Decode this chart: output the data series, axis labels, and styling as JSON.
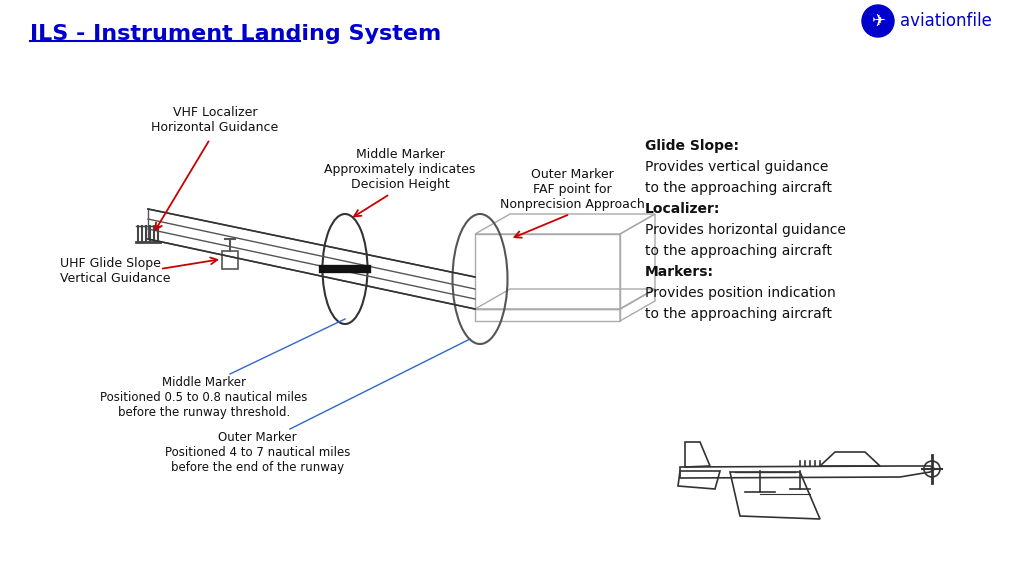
{
  "title": "ILS - Instrument Landing System",
  "title_color": "#0000CC",
  "bg_color": "#FFFFFF",
  "annotation_color": "#000000",
  "arrow_color": "#CC0000",
  "line_color": "#555555",
  "brand": "aviationfile",
  "brand_color": "#0000CC",
  "right_text_lines": [
    [
      "Glide Slope:",
      true
    ],
    [
      "Provides vertical guidance",
      false
    ],
    [
      "to the approaching aircraft",
      false
    ],
    [
      "Localizer:",
      true
    ],
    [
      "Provides horizontal guidance",
      false
    ],
    [
      "to the approaching aircraft",
      false
    ],
    [
      "Markers:",
      true
    ],
    [
      "Provides position indication",
      false
    ],
    [
      "to the approaching aircraft",
      false
    ]
  ],
  "labels": {
    "vhf": "VHF Localizer\nHorizontal Guidance",
    "uhf": "UHF Glide Slope\nVertical Guidance",
    "middle_marker_top": "Middle Marker\nApproximately indicates\nDecision Height",
    "outer_marker_top": "Outer Marker\nFAF point for\nNonprecision Approach",
    "middle_marker_bottom": "Middle Marker\nPositioned 0.5 to 0.8 nautical miles\nbefore the runway threshold.",
    "outer_marker_bottom": "Outer Marker\nPositioned 4 to 7 nautical miles\nbefore the end of the runway"
  }
}
